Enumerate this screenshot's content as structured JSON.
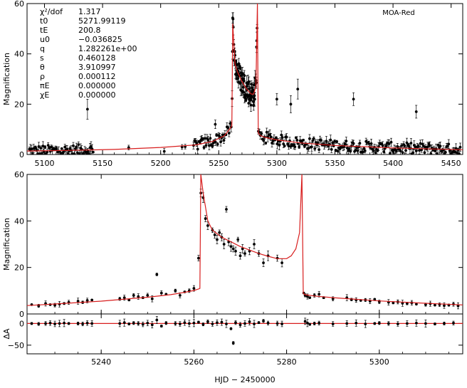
{
  "chart_data": [
    {
      "type": "scatter",
      "panel": "top",
      "dataset_label": "MOA-Red",
      "ylabel": "Magnification",
      "xlim": [
        5085,
        5460
      ],
      "ylim": [
        0,
        60
      ],
      "xticks": [
        5100,
        5150,
        5200,
        5250,
        5300,
        5350,
        5400,
        5450
      ],
      "yticks": [
        0,
        20,
        40,
        60
      ],
      "fit_parameters": [
        {
          "name": "χ²/dof",
          "value": "1.317"
        },
        {
          "name": "t0",
          "value": "5271.99119"
        },
        {
          "name": "tE",
          "value": "200.8"
        },
        {
          "name": "u0",
          "value": "−0.036825"
        },
        {
          "name": "q",
          "value": "1.282261e+00"
        },
        {
          "name": "s",
          "value": "0.460128"
        },
        {
          "name": "θ",
          "value": "3.910997"
        },
        {
          "name": "ρ",
          "value": "0.000112"
        },
        {
          "name": "πE",
          "value": "0.000000"
        },
        {
          "name": "χE",
          "value": "0.000000"
        }
      ],
      "model_curve": {
        "x": [
          5085,
          5120,
          5160,
          5200,
          5230,
          5245,
          5255,
          5260,
          5261.3,
          5262,
          5264,
          5266,
          5268,
          5270,
          5272,
          5274,
          5276,
          5278,
          5280,
          5282,
          5283.3,
          5284,
          5286,
          5290,
          5300,
          5320,
          5350,
          5400,
          5460
        ],
        "y": [
          1.4,
          1.6,
          2.0,
          2.8,
          3.8,
          5.2,
          7.5,
          10.5,
          11.5,
          52,
          36,
          33,
          31,
          29,
          27.5,
          26,
          25,
          24,
          24,
          27,
          60,
          8.5,
          7.5,
          6.8,
          5.8,
          4.6,
          3.6,
          2.6,
          1.9
        ]
      },
      "series": [
        {
          "name": "MOA-Red",
          "color": "#000000"
        }
      ]
    },
    {
      "type": "scatter",
      "panel": "middle-zoom",
      "ylabel": "Magnification",
      "xlim": [
        5224,
        5318
      ],
      "ylim": [
        0,
        60
      ],
      "yticks": [
        0,
        20,
        40,
        60
      ],
      "model_curve": {
        "x": [
          5224,
          5230,
          5240,
          5250,
          5255,
          5258,
          5260,
          5261,
          5261.3,
          5261.5,
          5262,
          5263,
          5264,
          5266,
          5268,
          5270,
          5272,
          5274,
          5276,
          5278,
          5280,
          5281,
          5282,
          5282.8,
          5283.3,
          5283.6,
          5284,
          5286,
          5290,
          5300,
          5310,
          5318
        ],
        "y": [
          3.6,
          4.3,
          5.5,
          7.2,
          8.3,
          9.3,
          10.1,
          10.7,
          11.0,
          60,
          52,
          40,
          36,
          33,
          31,
          29,
          27.5,
          26,
          24.8,
          23.8,
          23.8,
          25,
          28,
          35,
          60,
          8.8,
          8.3,
          7.7,
          7.0,
          5.6,
          4.6,
          3.9
        ]
      },
      "points": {
        "x": [
          5225,
          5226.5,
          5228,
          5229,
          5230,
          5231,
          5232,
          5233,
          5235,
          5236,
          5237,
          5238,
          5244,
          5245,
          5246,
          5247,
          5248,
          5249,
          5250,
          5251,
          5252,
          5253,
          5254,
          5256,
          5257,
          5258,
          5259,
          5260,
          5261,
          5261.5,
          5262,
          5262.5,
          5263,
          5264,
          5264.5,
          5265,
          5265.5,
          5266,
          5266.5,
          5267,
          5267.5,
          5268,
          5268.5,
          5269,
          5269.5,
          5270,
          5270.5,
          5271,
          5272,
          5273,
          5274,
          5275,
          5276,
          5278,
          5279,
          5283.7,
          5284,
          5284.5,
          5285,
          5286,
          5287,
          5288,
          5290,
          5293,
          5294,
          5295,
          5296,
          5297,
          5298,
          5299,
          5300,
          5302,
          5303,
          5304,
          5305,
          5306,
          5307,
          5308,
          5310,
          5311,
          5312,
          5313,
          5314,
          5315,
          5316,
          5317
        ],
        "y": [
          4,
          3.5,
          4.5,
          4,
          3.8,
          4.2,
          4.5,
          5,
          5.5,
          5,
          5.8,
          6,
          6.5,
          7,
          6,
          8,
          7.5,
          7,
          8,
          6.5,
          17,
          9,
          8.5,
          10,
          8,
          9.5,
          10,
          11,
          24,
          52,
          50,
          41,
          38,
          36,
          34,
          32,
          35,
          33,
          30,
          45,
          31,
          29,
          28,
          27,
          32,
          25,
          28,
          26,
          27,
          30,
          26,
          22,
          25,
          24,
          22,
          9,
          8,
          7.5,
          7,
          8,
          8.5,
          7,
          6.5,
          7,
          6.2,
          6,
          5.8,
          6,
          5.5,
          6.3,
          5.2,
          5,
          4.8,
          5.2,
          4.6,
          4.5,
          4.8,
          4.2,
          4,
          4.4,
          3.8,
          4,
          3.6,
          3.8,
          4.2,
          3.5
        ]
      }
    },
    {
      "type": "scatter",
      "panel": "bottom-residuals",
      "ylabel": "ΔA",
      "xlabel": "HJD − 2450000",
      "xlim": [
        5224,
        5318
      ],
      "ylim": [
        -70,
        22
      ],
      "yticks": [
        0,
        -50
      ],
      "ytick_labels": [
        "0",
        "−50"
      ],
      "xticks": [
        5240,
        5260,
        5280,
        5300
      ],
      "zero_line": true,
      "points": {
        "x": [
          5225,
          5226.5,
          5228,
          5229,
          5230,
          5231,
          5232,
          5233,
          5235,
          5236,
          5237,
          5238,
          5244,
          5245,
          5246,
          5247,
          5248,
          5249,
          5250,
          5251,
          5252,
          5253,
          5254,
          5256,
          5257,
          5258,
          5259,
          5260,
          5261,
          5262,
          5263,
          5264,
          5265,
          5266,
          5267,
          5268,
          5268.5,
          5269,
          5270,
          5271,
          5272,
          5273,
          5274,
          5275,
          5276,
          5278,
          5279,
          5284,
          5284.5,
          5285,
          5286,
          5287,
          5290,
          5293,
          5295,
          5297,
          5299,
          5300,
          5302,
          5304,
          5306,
          5308,
          5310,
          5312,
          5314,
          5316
        ],
        "y": [
          0,
          -1,
          0,
          1,
          -1,
          0,
          1,
          0,
          0,
          -1,
          1,
          0,
          0,
          2,
          -1,
          1,
          0,
          -2,
          1,
          -3,
          8,
          -6,
          1,
          0,
          -1,
          2,
          0,
          1,
          3,
          -2,
          4,
          -1,
          2,
          3,
          -1,
          -12,
          -45,
          2,
          -3,
          0,
          4,
          -1,
          2,
          6,
          1,
          0,
          -1,
          5,
          1,
          -2,
          0,
          1,
          -1,
          0,
          1,
          -1,
          0,
          1,
          0,
          -1,
          0,
          1,
          0,
          -1,
          0,
          1
        ]
      }
    }
  ]
}
